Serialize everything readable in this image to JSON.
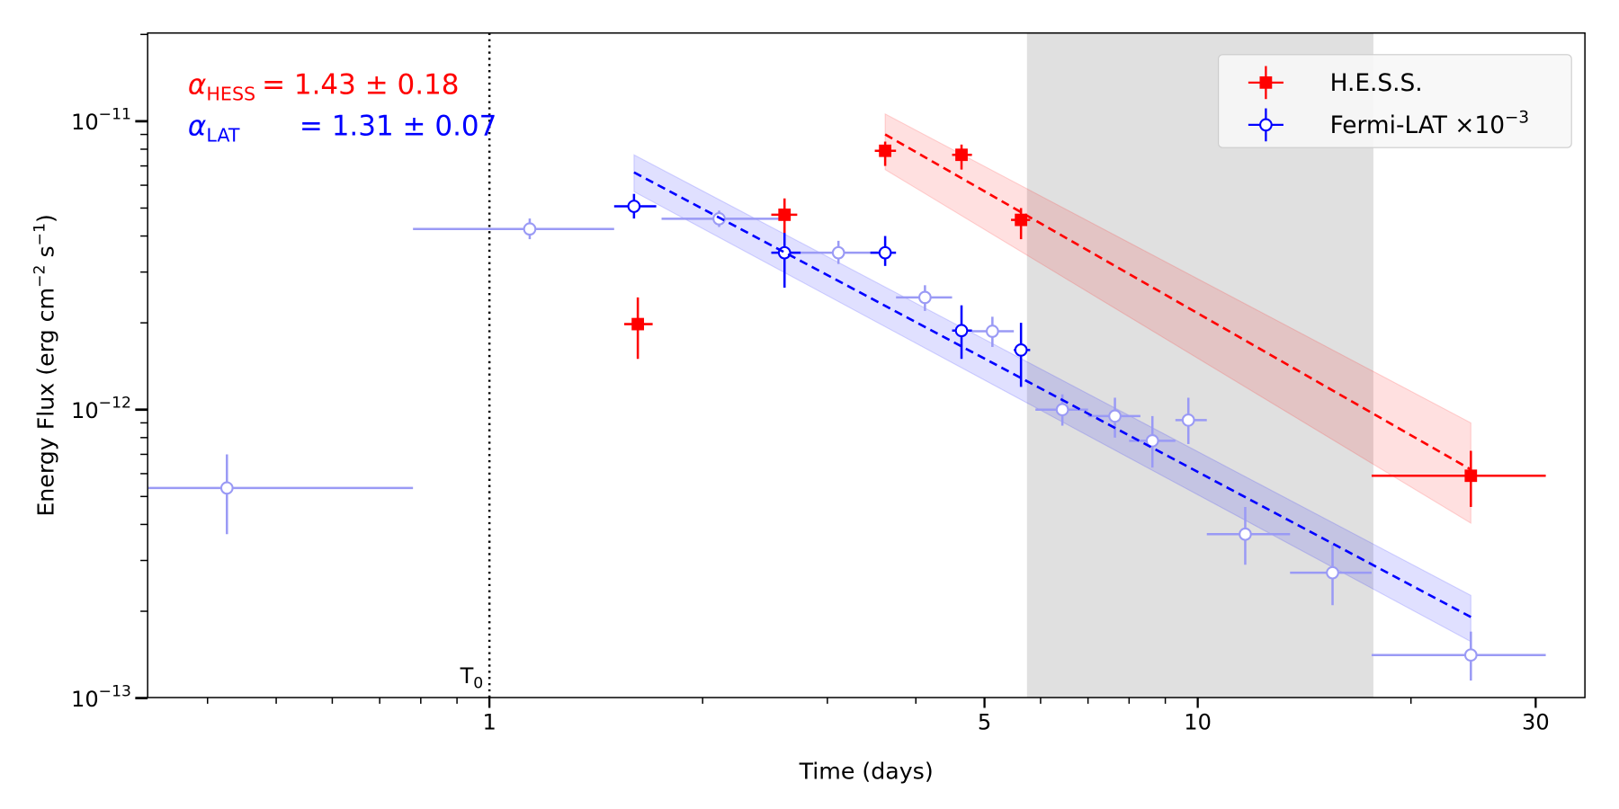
{
  "chart_data": {
    "type": "scatter",
    "xscale": "log",
    "yscale": "log",
    "xlim": [
      0.33,
      35
    ],
    "ylim": [
      1e-13,
      2e-11
    ],
    "xlabel": "Time (days)",
    "ylabel": {
      "text": "Energy Flux (erg cm",
      "exp1": "−2",
      "mid": " s",
      "exp2": "−1",
      "end": ")"
    },
    "xticks": [
      {
        "value": 1,
        "label": "1"
      },
      {
        "value": 5,
        "label": "5"
      },
      {
        "value": 10,
        "label": "10"
      },
      {
        "value": 30,
        "label": "30"
      }
    ],
    "yticks": [
      {
        "value": 1e-13,
        "base": "10",
        "exp": "−13"
      },
      {
        "value": 1e-12,
        "base": "10",
        "exp": "−12"
      },
      {
        "value": 1e-11,
        "base": "10",
        "exp": "−11"
      }
    ],
    "t0": {
      "value": 1,
      "label": "T",
      "sub": "0"
    },
    "shaded_interval": [
      5.74,
      17.7
    ],
    "colors": {
      "hess": "#ff0000",
      "lat": "#0000ff",
      "lat_faded": "#9a9af5",
      "shade": "#e0e0e0"
    },
    "series": [
      {
        "name": "H.E.S.S.",
        "marker": "square",
        "points": [
          [
            1.62,
            1.55,
            1.7,
            1.98e-12,
            1.5e-12,
            2.45e-12
          ],
          [
            2.61,
            2.5,
            2.72,
            4.74e-12,
            4.1e-12,
            5.4e-12
          ],
          [
            3.62,
            3.5,
            3.75,
            7.9e-12,
            7e-12,
            8.5e-12
          ],
          [
            4.64,
            4.5,
            4.8,
            7.65e-12,
            6.8e-12,
            8.3e-12
          ],
          [
            5.63,
            5.45,
            5.8,
            4.55e-12,
            3.9e-12,
            5e-12
          ],
          [
            24.3,
            17.6,
            31.0,
            5.9e-13,
            4.6e-13,
            7.2e-13
          ]
        ]
      },
      {
        "name": "Fermi-LAT ×10⁻³ (faded)",
        "marker": "open-circle",
        "points": [
          [
            0.426,
            0.33,
            0.78,
            5.35e-13,
            3.7e-13,
            7e-13
          ],
          [
            1.14,
            0.78,
            1.5,
            4.23e-12,
            3.9e-12,
            4.6e-12
          ],
          [
            2.11,
            1.75,
            2.65,
            4.59e-12,
            4.3e-12,
            4.9e-12
          ],
          [
            3.11,
            2.65,
            3.6,
            3.5e-12,
            3.2e-12,
            3.85e-12
          ],
          [
            4.12,
            3.75,
            4.5,
            2.45e-12,
            2.2e-12,
            2.7e-12
          ],
          [
            5.13,
            4.8,
            5.5,
            1.87e-12,
            1.65e-12,
            2.1e-12
          ],
          [
            6.44,
            5.9,
            7.0,
            1e-12,
            8.8e-13,
            1.13e-12
          ],
          [
            7.64,
            7.0,
            8.3,
            9.5e-13,
            8e-13,
            1.1e-12
          ],
          [
            8.63,
            8.0,
            9.3,
            7.8e-13,
            6.3e-13,
            9.5e-13
          ],
          [
            9.7,
            9.3,
            10.3,
            9.2e-13,
            7.6e-13,
            1.1e-12
          ],
          [
            11.67,
            10.3,
            13.5,
            3.7e-13,
            2.9e-13,
            4.6e-13
          ],
          [
            15.5,
            13.5,
            17.6,
            2.72e-13,
            2.1e-13,
            3.4e-13
          ],
          [
            24.3,
            17.6,
            31.0,
            1.41e-13,
            1.15e-13,
            1.7e-13
          ]
        ]
      },
      {
        "name": "Fermi-LAT ×10⁻³",
        "marker": "open-circle",
        "points": [
          [
            1.6,
            1.5,
            1.72,
            5.07e-12,
            4.6e-12,
            5.6e-12
          ],
          [
            2.61,
            2.5,
            2.75,
            3.5e-12,
            2.65e-12,
            4.3e-12
          ],
          [
            3.62,
            3.45,
            3.75,
            3.5e-12,
            3.15e-12,
            4e-12
          ],
          [
            4.64,
            4.5,
            4.8,
            1.88e-12,
            1.5e-12,
            2.3e-12
          ],
          [
            5.63,
            5.5,
            5.8,
            1.61e-12,
            1.2e-12,
            2e-12
          ]
        ]
      }
    ],
    "fits": [
      {
        "name": "HESS fit",
        "t": [
          3.62,
          24.3
        ],
        "line": [
          9e-12,
          6.2e-13
        ],
        "band_hi": [
          1.06e-11,
          9e-13
        ],
        "band_lo": [
          6.8e-12,
          4.04e-13
        ]
      },
      {
        "name": "LAT fit",
        "t": [
          1.6,
          24.3
        ],
        "line": [
          6.65e-12,
          1.91e-13
        ],
        "band_hi": [
          7.65e-12,
          2.27e-13
        ],
        "band_lo": [
          5.7e-12,
          1.57e-13
        ]
      }
    ],
    "annotations": [
      {
        "symbol": "α",
        "sub": "HESS",
        "text": "= 1.43 ± 0.18"
      },
      {
        "symbol": "α",
        "sub": "LAT",
        "text": "= 1.31 ± 0.07"
      }
    ],
    "legend": {
      "position": "top-right",
      "entries": [
        {
          "label": "H.E.S.S."
        },
        {
          "label": "Fermi-LAT ×10",
          "exp": "−3"
        }
      ]
    }
  }
}
